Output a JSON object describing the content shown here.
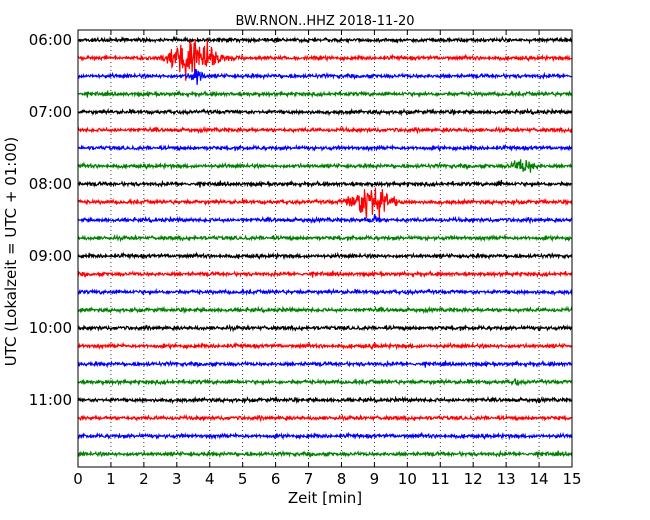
{
  "chart_data": {
    "type": "line",
    "title": "BW.RNON..HHZ 2018-11-20",
    "xlabel": "Zeit  [min]",
    "ylabel": "UTC (Lokalzeit = UTC + 01:00)",
    "xlim": [
      0,
      15
    ],
    "x_ticks": [
      "0",
      "1",
      "2",
      "3",
      "4",
      "5",
      "6",
      "7",
      "8",
      "9",
      "10",
      "11",
      "12",
      "13",
      "14",
      "15"
    ],
    "y_ticks": [
      "06:00",
      "07:00",
      "08:00",
      "09:00",
      "10:00",
      "11:00"
    ],
    "grid": "vertical dotted",
    "trace_interval_min": 15,
    "trace_colors": [
      "#000000",
      "#ff0000",
      "#0000ff",
      "#008000"
    ],
    "traces": [
      {
        "start": "06:00",
        "events": []
      },
      {
        "start": "06:15",
        "events": [
          {
            "t": 3.5,
            "amp": 32,
            "dur": 2.0
          }
        ]
      },
      {
        "start": "06:30",
        "events": [
          {
            "t": 3.6,
            "amp": 14,
            "dur": 0.5
          }
        ]
      },
      {
        "start": "06:45",
        "events": []
      },
      {
        "start": "07:00",
        "events": []
      },
      {
        "start": "07:15",
        "events": []
      },
      {
        "start": "07:30",
        "events": []
      },
      {
        "start": "07:45",
        "events": [
          {
            "t": 13.5,
            "amp": 9,
            "dur": 1.0
          }
        ]
      },
      {
        "start": "08:00",
        "events": [
          {
            "t": 12.8,
            "amp": 5,
            "dur": 0.2
          }
        ]
      },
      {
        "start": "08:15",
        "events": [
          {
            "t": 8.9,
            "amp": 28,
            "dur": 1.6
          }
        ]
      },
      {
        "start": "08:30",
        "events": [
          {
            "t": 9.0,
            "amp": 7,
            "dur": 0.4
          }
        ]
      },
      {
        "start": "08:45",
        "events": []
      },
      {
        "start": "09:00",
        "events": []
      },
      {
        "start": "09:15",
        "events": []
      },
      {
        "start": "09:30",
        "events": []
      },
      {
        "start": "09:45",
        "events": []
      },
      {
        "start": "10:00",
        "events": []
      },
      {
        "start": "10:15",
        "events": [
          {
            "t": 9.0,
            "amp": 5,
            "dur": 0.2
          }
        ]
      },
      {
        "start": "10:30",
        "events": []
      },
      {
        "start": "10:45",
        "events": [
          {
            "t": 13.3,
            "amp": 6,
            "dur": 0.2
          }
        ]
      },
      {
        "start": "11:00",
        "events": []
      },
      {
        "start": "11:15",
        "events": []
      },
      {
        "start": "11:30",
        "events": []
      },
      {
        "start": "11:45",
        "events": []
      }
    ]
  }
}
